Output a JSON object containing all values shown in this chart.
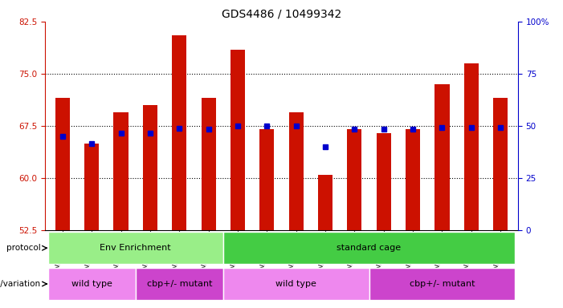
{
  "title": "GDS4486 / 10499342",
  "samples": [
    "GSM766006",
    "GSM766007",
    "GSM766008",
    "GSM766014",
    "GSM766015",
    "GSM766016",
    "GSM766001",
    "GSM766002",
    "GSM766003",
    "GSM766004",
    "GSM766005",
    "GSM766009",
    "GSM766010",
    "GSM766011",
    "GSM766012",
    "GSM766013"
  ],
  "red_values": [
    71.5,
    65.0,
    69.5,
    70.5,
    80.5,
    71.5,
    78.5,
    67.0,
    69.5,
    60.5,
    67.0,
    66.5,
    67.0,
    73.5,
    76.5,
    71.5
  ],
  "blue_values": [
    66.0,
    65.0,
    66.5,
    66.5,
    67.2,
    67.0,
    67.5,
    67.5,
    67.5,
    64.5,
    67.0,
    67.0,
    67.0,
    67.3,
    67.3,
    67.3
  ],
  "ylim_left": [
    52.5,
    82.5
  ],
  "ylim_right": [
    0,
    100
  ],
  "left_ticks": [
    52.5,
    60,
    67.5,
    75,
    82.5
  ],
  "right_ticks": [
    0,
    25,
    50,
    75,
    100
  ],
  "right_tick_labels": [
    "0",
    "25",
    "50",
    "75",
    "100%"
  ],
  "bar_color": "#cc1100",
  "dot_color": "#0000cc",
  "protocol_groups": [
    {
      "label": "Env Enrichment",
      "start": 0,
      "end": 6,
      "color": "#99ee88"
    },
    {
      "label": "standard cage",
      "start": 6,
      "end": 16,
      "color": "#44cc44"
    }
  ],
  "genotype_groups": [
    {
      "label": "wild type",
      "start": 0,
      "end": 3,
      "color": "#ee88ee"
    },
    {
      "label": "cbp+/- mutant",
      "start": 3,
      "end": 6,
      "color": "#cc44cc"
    },
    {
      "label": "wild type",
      "start": 6,
      "end": 11,
      "color": "#ee88ee"
    },
    {
      "label": "cbp+/- mutant",
      "start": 11,
      "end": 16,
      "color": "#cc44cc"
    }
  ],
  "legend_count_color": "#cc1100",
  "legend_pct_color": "#0000cc",
  "bar_width": 0.5,
  "background_color": "#ffffff"
}
